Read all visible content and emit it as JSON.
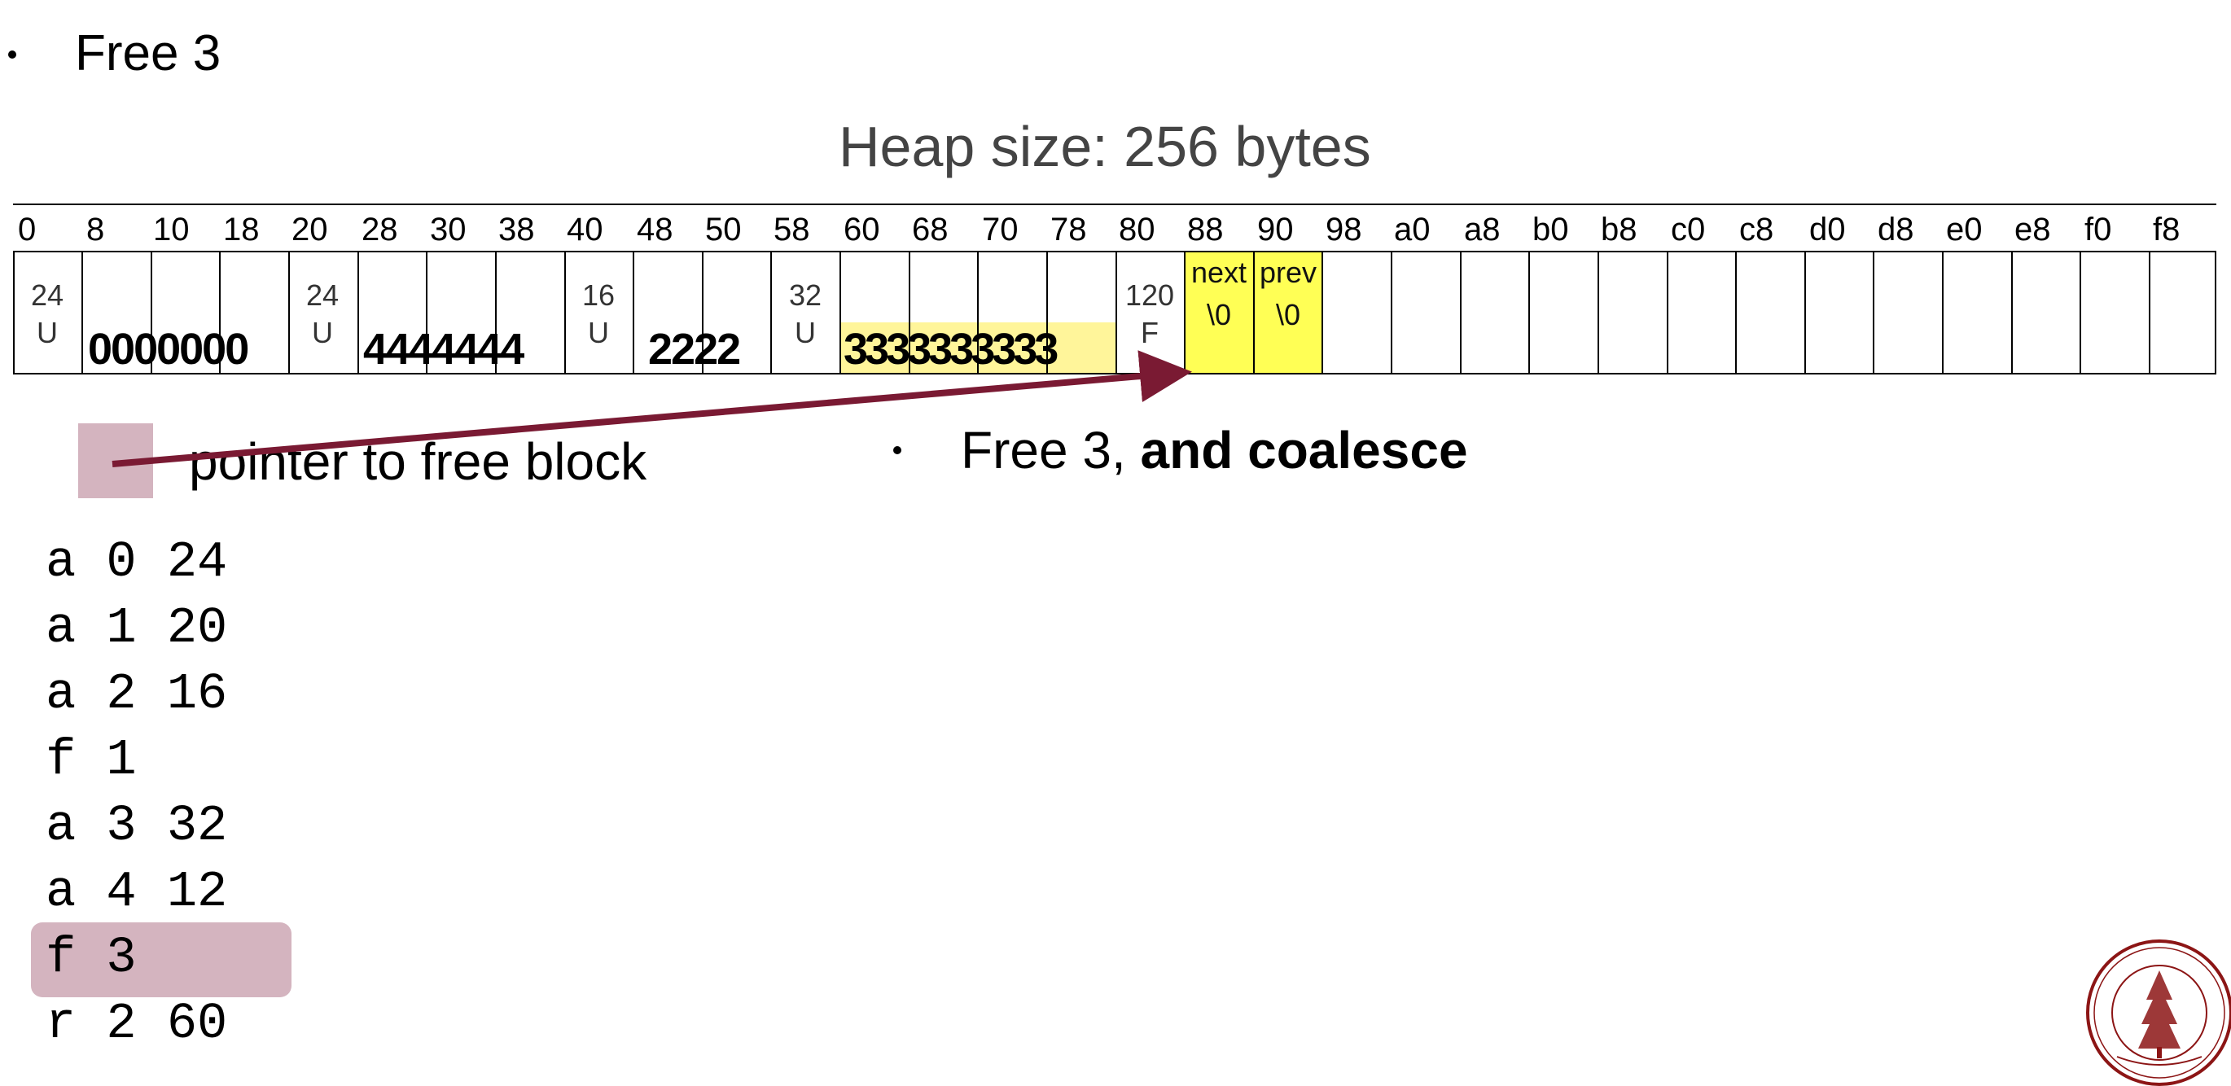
{
  "slide": {
    "top_bullet": "Free 3",
    "heap_title": "Heap size: 256 bytes",
    "legend_label": "pointer to free block",
    "mid_bullet_prefix": "Free 3, ",
    "mid_bullet_bold": "and coalesce"
  },
  "heap": {
    "addresses": [
      "0",
      "8",
      "10",
      "18",
      "20",
      "28",
      "30",
      "38",
      "40",
      "48",
      "50",
      "58",
      "60",
      "68",
      "70",
      "78",
      "80",
      "88",
      "90",
      "98",
      "a0",
      "a8",
      "b0",
      "b8",
      "c0",
      "c8",
      "d0",
      "d8",
      "e0",
      "e8",
      "f0",
      "f8"
    ],
    "blocks": [
      {
        "header_size": "24",
        "header_status": "U",
        "payload": "0000000"
      },
      {
        "header_size": "24",
        "header_status": "U",
        "payload": "4444444"
      },
      {
        "header_size": "16",
        "header_status": "U",
        "payload": "2222"
      },
      {
        "header_size": "32",
        "header_status": "U",
        "payload": "3333333333"
      },
      {
        "header_size": "120",
        "header_status": "F",
        "next_label": "next",
        "next_value": "\\0",
        "prev_label": "prev",
        "prev_value": "\\0"
      }
    ],
    "highlight_colors": {
      "free_pointer": "#ffff55",
      "freed_payload": "#fff59a",
      "arrow": "#7a1a33",
      "legend": "#d4b4bf"
    }
  },
  "script_lines": [
    "a 0 24",
    "a 1 20",
    "a 2 16",
    "f 1",
    "a 3 32",
    "a 4 12",
    "f 3",
    "r 2 60"
  ],
  "current_line_index": 6
}
